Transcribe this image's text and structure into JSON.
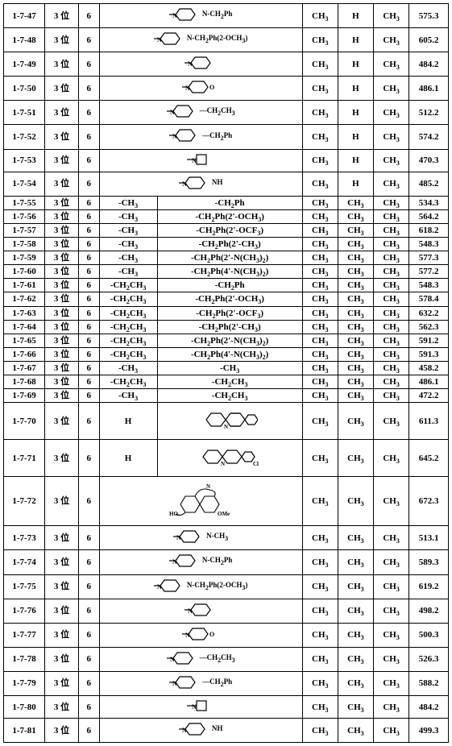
{
  "rows": [
    {
      "id": "1-7-47",
      "pos": "3 位",
      "n": "6",
      "merged": true,
      "r4": "",
      "struct": "—N⟨⟩N-CH₂Ph",
      "r5": "CH₃",
      "r6": "H",
      "r7": "CH₃",
      "mw": "575.3"
    },
    {
      "id": "1-7-48",
      "pos": "3 位",
      "n": "6",
      "merged": true,
      "r4": "",
      "struct": "—N⟨⟩N-CH₂Ph(2-OCH₃)",
      "r5": "CH₃",
      "r6": "H",
      "r7": "CH₃",
      "mw": "605.2"
    },
    {
      "id": "1-7-49",
      "pos": "3 位",
      "n": "6",
      "merged": true,
      "r4": "",
      "struct": "—N⟨⟩",
      "r5": "CH₃",
      "r6": "H",
      "r7": "CH₃",
      "mw": "484.2"
    },
    {
      "id": "1-7-50",
      "pos": "3 位",
      "n": "6",
      "merged": true,
      "r4": "",
      "struct": "—N⟨⟩O",
      "r5": "CH₃",
      "r6": "H",
      "r7": "CH₃",
      "mw": "486.1"
    },
    {
      "id": "1-7-51",
      "pos": "3 位",
      "n": "6",
      "merged": true,
      "r4": "",
      "struct": "—N⟨⟩—CH₂CH₃",
      "r5": "CH₃",
      "r6": "H",
      "r7": "CH₃",
      "mw": "512.2"
    },
    {
      "id": "1-7-52",
      "pos": "3 位",
      "n": "6",
      "merged": true,
      "r4": "",
      "struct": "—N⟨⟩—CH₂Ph",
      "r5": "CH₃",
      "r6": "H",
      "r7": "CH₃",
      "mw": "574.2"
    },
    {
      "id": "1-7-53",
      "pos": "3 位",
      "n": "6",
      "merged": true,
      "r4": "",
      "struct": "—N▢",
      "r5": "CH₃",
      "r6": "H",
      "r7": "CH₃",
      "mw": "470.3"
    },
    {
      "id": "1-7-54",
      "pos": "3 位",
      "n": "6",
      "merged": true,
      "r4": "",
      "struct": "—N⟨⟩NH",
      "r5": "CH₃",
      "r6": "H",
      "r7": "CH₃",
      "mw": "485.2"
    },
    {
      "id": "1-7-55",
      "pos": "3 位",
      "n": "6",
      "merged": false,
      "r4": "-CH₃",
      "struct": "-CH₂Ph",
      "r5": "CH₃",
      "r6": "CH₃",
      "r7": "CH₃",
      "mw": "534.3"
    },
    {
      "id": "1-7-56",
      "pos": "3 位",
      "n": "6",
      "merged": false,
      "r4": "-CH₃",
      "struct": "-CH₂Ph(2'-OCH₃)",
      "r5": "CH₃",
      "r6": "CH₃",
      "r7": "CH₃",
      "mw": "564.2"
    },
    {
      "id": "1-7-57",
      "pos": "3 位",
      "n": "6",
      "merged": false,
      "r4": "-CH₃",
      "struct": "-CH₂Ph(2'-OCF₃)",
      "r5": "CH₃",
      "r6": "CH₃",
      "r7": "CH₃",
      "mw": "618.2"
    },
    {
      "id": "1-7-58",
      "pos": "3 位",
      "n": "6",
      "merged": false,
      "r4": "-CH₃",
      "struct": "-CH₂Ph(2'-CH₃)",
      "r5": "CH₃",
      "r6": "CH₃",
      "r7": "CH₃",
      "mw": "548.3"
    },
    {
      "id": "1-7-59",
      "pos": "3 位",
      "n": "6",
      "merged": false,
      "r4": "-CH₃",
      "struct": "-CH₂Ph(2'-N(CH₃)₂)",
      "r5": "CH₃",
      "r6": "CH₃",
      "r7": "CH₃",
      "mw": "577.3"
    },
    {
      "id": "1-7-60",
      "pos": "3 位",
      "n": "6",
      "merged": false,
      "r4": "-CH₃",
      "struct": "-CH₂Ph(4'-N(CH₃)₂)",
      "r5": "CH₃",
      "r6": "CH₃",
      "r7": "CH₃",
      "mw": "577.2"
    },
    {
      "id": "1-7-61",
      "pos": "3 位",
      "n": "6",
      "merged": false,
      "r4": "-CH₂CH₃",
      "struct": "-CH₂Ph",
      "r5": "CH₃",
      "r6": "CH₃",
      "r7": "CH₃",
      "mw": "548.3"
    },
    {
      "id": "1-7-62",
      "pos": "3 位",
      "n": "6",
      "merged": false,
      "r4": "-CH₂CH₃",
      "struct": "-CH₂Ph(2'-OCH₃)",
      "r5": "CH₃",
      "r6": "CH₃",
      "r7": "CH₃",
      "mw": "578.4"
    },
    {
      "id": "1-7-63",
      "pos": "3 位",
      "n": "6",
      "merged": false,
      "r4": "-CH₂CH₃",
      "struct": "-CH₂Ph(2'-OCF₃)",
      "r5": "CH₃",
      "r6": "CH₃",
      "r7": "CH₃",
      "mw": "632.2"
    },
    {
      "id": "1-7-64",
      "pos": "3 位",
      "n": "6",
      "merged": false,
      "r4": "-CH₂CH₃",
      "struct": "-CH₂Ph(2'-CH₃)",
      "r5": "CH₃",
      "r6": "CH₃",
      "r7": "CH₃",
      "mw": "562.3"
    },
    {
      "id": "1-7-65",
      "pos": "3 位",
      "n": "6",
      "merged": false,
      "r4": "-CH₂CH₃",
      "struct": "-CH₂Ph(2'-N(CH₃)₂)",
      "r5": "CH₃",
      "r6": "CH₃",
      "r7": "CH₃",
      "mw": "591.2"
    },
    {
      "id": "1-7-66",
      "pos": "3 位",
      "n": "6",
      "merged": false,
      "r4": "-CH₂CH₃",
      "struct": "-CH₂Ph(4'-N(CH₃)₂)",
      "r5": "CH₃",
      "r6": "CH₃",
      "r7": "CH₃",
      "mw": "591.3"
    },
    {
      "id": "1-7-67",
      "pos": "3 位",
      "n": "6",
      "merged": false,
      "r4": "-CH₃",
      "struct": "-CH₃",
      "r5": "CH₃",
      "r6": "CH₃",
      "r7": "CH₃",
      "mw": "458.2"
    },
    {
      "id": "1-7-68",
      "pos": "3 位",
      "n": "6",
      "merged": false,
      "r4": "-CH₂CH₃",
      "struct": "-CH₂CH₃",
      "r5": "CH₃",
      "r6": "CH₃",
      "r7": "CH₃",
      "mw": "486.1"
    },
    {
      "id": "1-7-69",
      "pos": "3 位",
      "n": "6",
      "merged": false,
      "r4": "-CH₃",
      "struct": "-CH₂CH₃",
      "r5": "CH₃",
      "r6": "CH₃",
      "r7": "CH₃",
      "mw": "472.2"
    },
    {
      "id": "1-7-70",
      "pos": "3 位",
      "n": "6",
      "merged": false,
      "tall": true,
      "r4": "H",
      "struct": "⟨acridine⟩",
      "r5": "CH₃",
      "r6": "CH₃",
      "r7": "CH₃",
      "mw": "611.3"
    },
    {
      "id": "1-7-71",
      "pos": "3 位",
      "n": "6",
      "merged": false,
      "tall": true,
      "r4": "H",
      "struct": "⟨acridine-Cl⟩",
      "r5": "CH₃",
      "r6": "CH₃",
      "r7": "CH₃",
      "mw": "645.2"
    },
    {
      "id": "1-7-72",
      "pos": "3 位",
      "n": "6",
      "merged": true,
      "xtall": true,
      "r4": "",
      "struct": "⟨galantamine⟩",
      "r5": "CH₃",
      "r6": "CH₃",
      "r7": "CH₃",
      "mw": "672.3"
    },
    {
      "id": "1-7-73",
      "pos": "3 位",
      "n": "6",
      "merged": true,
      "r4": "",
      "struct": "—N⟨⟩N-CH₃",
      "r5": "CH₃",
      "r6": "CH₃",
      "r7": "CH₃",
      "mw": "513.1"
    },
    {
      "id": "1-7-74",
      "pos": "3 位",
      "n": "6",
      "merged": true,
      "r4": "",
      "struct": "—N⟨⟩N-CH₂Ph",
      "r5": "CH₃",
      "r6": "CH₃",
      "r7": "CH₃",
      "mw": "589.3"
    },
    {
      "id": "1-7-75",
      "pos": "3 位",
      "n": "6",
      "merged": true,
      "r4": "",
      "struct": "—N⟨⟩N-CH₂Ph(2-OCH₃)",
      "r5": "CH₃",
      "r6": "CH₃",
      "r7": "CH₃",
      "mw": "619.2"
    },
    {
      "id": "1-7-76",
      "pos": "3 位",
      "n": "6",
      "merged": true,
      "r4": "",
      "struct": "—N⟨⟩",
      "r5": "CH₃",
      "r6": "CH₃",
      "r7": "CH₃",
      "mw": "498.2"
    },
    {
      "id": "1-7-77",
      "pos": "3 位",
      "n": "6",
      "merged": true,
      "r4": "",
      "struct": "—N⟨⟩O",
      "r5": "CH₃",
      "r6": "CH₃",
      "r7": "CH₃",
      "mw": "500.3"
    },
    {
      "id": "1-7-78",
      "pos": "3 位",
      "n": "6",
      "merged": true,
      "r4": "",
      "struct": "—N⟨⟩—CH₂CH₃",
      "r5": "CH₃",
      "r6": "CH₃",
      "r7": "CH₃",
      "mw": "526.3"
    },
    {
      "id": "1-7-79",
      "pos": "3 位",
      "n": "6",
      "merged": true,
      "r4": "",
      "struct": "—N⟨⟩—CH₂Ph",
      "r5": "CH₃",
      "r6": "CH₃",
      "r7": "CH₃",
      "mw": "588.2"
    },
    {
      "id": "1-7-80",
      "pos": "3 位",
      "n": "6",
      "merged": true,
      "r4": "",
      "struct": "—N▢",
      "r5": "CH₃",
      "r6": "CH₃",
      "r7": "CH₃",
      "mw": "484.2"
    },
    {
      "id": "1-7-81",
      "pos": "3 位",
      "n": "6",
      "merged": true,
      "r4": "",
      "struct": "—N⟨⟩NH",
      "r5": "CH₃",
      "r6": "CH₃",
      "r7": "CH₃",
      "mw": "499.3"
    }
  ],
  "svg": {
    "hex": "<svg width='40' height='22' viewBox='0 0 40 22'><polygon points='8,11 13,4 27,4 32,11 27,18 13,18' fill='none' stroke='#000' stroke-width='1.2'/><line x1='0' y1='11' x2='8' y2='11' stroke='#000' stroke-width='1.2'/><text x='4' y='15' font-size='8' font-family='serif'>N</text></svg>",
    "hexO": "<svg width='46' height='22' viewBox='0 0 46 22'><polygon points='8,11 13,4 27,4 32,11 27,18 13,18' fill='none' stroke='#000' stroke-width='1.2'/><line x1='0' y1='11' x2='8' y2='11' stroke='#000' stroke-width='1.2'/><text x='4' y='15' font-size='8' font-family='serif'>N</text><text x='34' y='14' font-size='8' font-family='serif'>O</text></svg>",
    "sq": "<svg width='34' height='20' viewBox='0 0 34 20'><rect x='12' y='4' width='12' height='12' fill='none' stroke='#000' stroke-width='1.2'/><line x1='0' y1='10' x2='12' y2='10' stroke='#000' stroke-width='1.2'/><text x='6' y='14' font-size='8' font-family='serif'>N</text></svg>",
    "acr": "<svg width='70' height='38' viewBox='0 0 70 38'><g fill='none' stroke='#000' stroke-width='1.2'><polygon points='6,19 12,11 24,11 30,19 24,27 12,27'/><polygon points='30,19 36,11 48,11 54,19 48,27 36,27'/><polygon points='54,19 58,13 66,13 70,19 66,25 58,25'/><line x1='36' y1='11' x2='48' y2='11'/><line x1='36' y1='27' x2='48' y2='27'/></g><text x='28' y='30' font-size='7' font-family='serif'>N</text></svg>",
    "acrcl": "<svg width='78' height='38' viewBox='0 0 78 38'><g fill='none' stroke='#000' stroke-width='1.2'><polygon points='6,19 12,11 24,11 30,19 24,27 12,27'/><polygon points='30,19 36,11 48,11 54,19 48,27 36,27'/><polygon points='54,19 58,13 66,13 70,19 66,25 58,25'/></g><text x='28' y='30' font-size='7' font-family='serif'>N</text><text x='68' y='30' font-size='7' font-family='serif'>Cl</text></svg>",
    "gal": "<svg width='90' height='50' viewBox='0 0 90 50'><g fill='none' stroke='#000' stroke-width='1.1'><polygon points='20,30 26,20 38,20 44,30 38,40 26,40'/><polygon points='44,30 50,20 62,20 68,30 62,40 50,40'/><path d='M38,20 Q44,8 56,12 Q66,14 62,20'/><path d='M26,40 Q20,46 14,42'/></g><text x='6' y='44' font-size='7' font-family='serif'>HO</text><text x='66' y='44' font-size='7' font-family='serif'>OMe</text><text x='52' y='10' font-size='7' font-family='serif'>N</text></svg>"
  }
}
